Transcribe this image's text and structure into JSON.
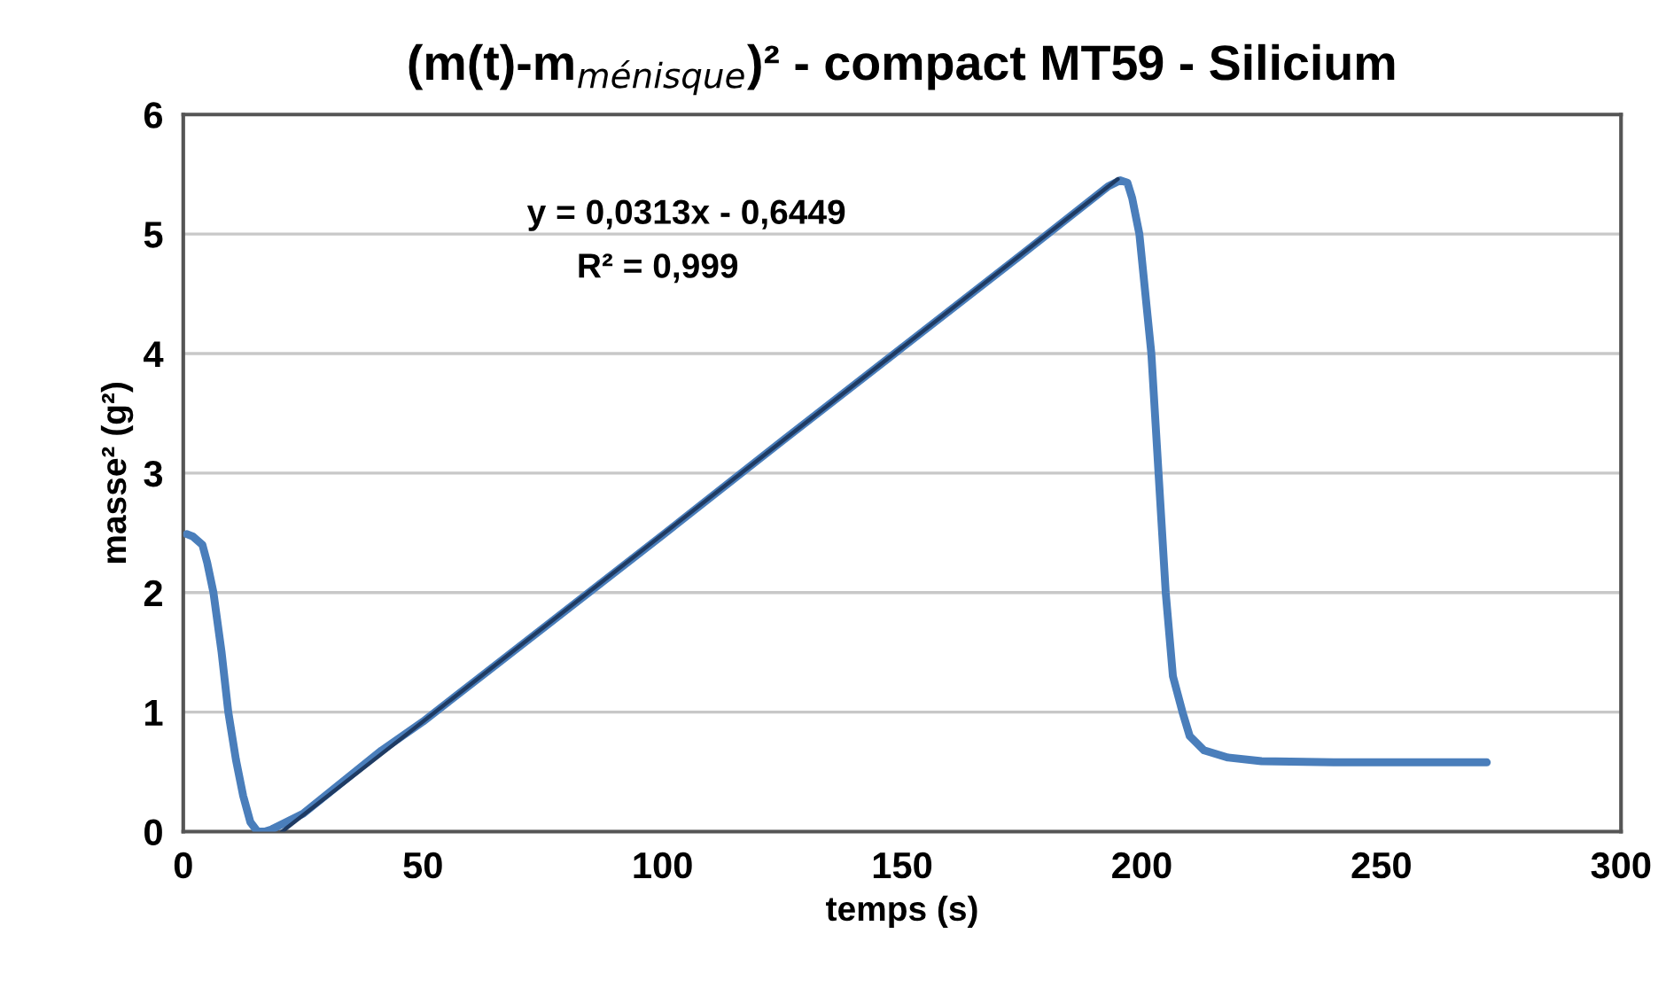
{
  "chart_data": {
    "type": "line",
    "title": "(m(t)-m$_{ménisque}$)² - compact MT59 - Silicium",
    "xlabel": "temps (s)",
    "ylabel": "masse² (g²)",
    "series": [
      {
        "color": "#4a7ebb",
        "x": [
          0.7,
          2,
          4,
          5,
          6.3,
          8,
          9.4,
          11,
          12.5,
          14,
          15.5,
          17,
          18.5,
          20,
          25,
          41.4,
          50,
          75,
          100,
          125,
          150,
          175,
          193,
          195.5,
          197,
          198,
          199.5,
          202,
          203.5,
          205,
          206.5,
          208.5,
          210,
          213,
          218,
          225,
          240,
          272
        ],
        "values": [
          2.49,
          2.47,
          2.4,
          2.25,
          2.0,
          1.5,
          1.0,
          0.6,
          0.3,
          0.08,
          0.0,
          0.0,
          0.02,
          0.05,
          0.15,
          0.68,
          0.92,
          1.7,
          2.48,
          3.27,
          4.05,
          4.83,
          5.4,
          5.45,
          5.43,
          5.3,
          5.0,
          4.0,
          3.0,
          2.0,
          1.3,
          1.0,
          0.8,
          0.68,
          0.62,
          0.59,
          0.58,
          0.58
        ]
      },
      {
        "type": "line",
        "color": "#1f3b63",
        "x": [
          20.6,
          195
        ],
        "values": [
          0.0,
          5.46
        ]
      }
    ],
    "annotations": [
      "y = 0,0313x - 0,6449",
      "R² = 0,999"
    ],
    "xlim": [
      0,
      300
    ],
    "xticks": [
      0,
      50,
      100,
      150,
      200,
      250,
      300
    ],
    "ylim": [
      0,
      6
    ],
    "yticks": [
      0,
      1,
      2,
      3,
      4,
      5,
      6
    ],
    "grid": "y",
    "legend": false,
    "marker": "none"
  }
}
